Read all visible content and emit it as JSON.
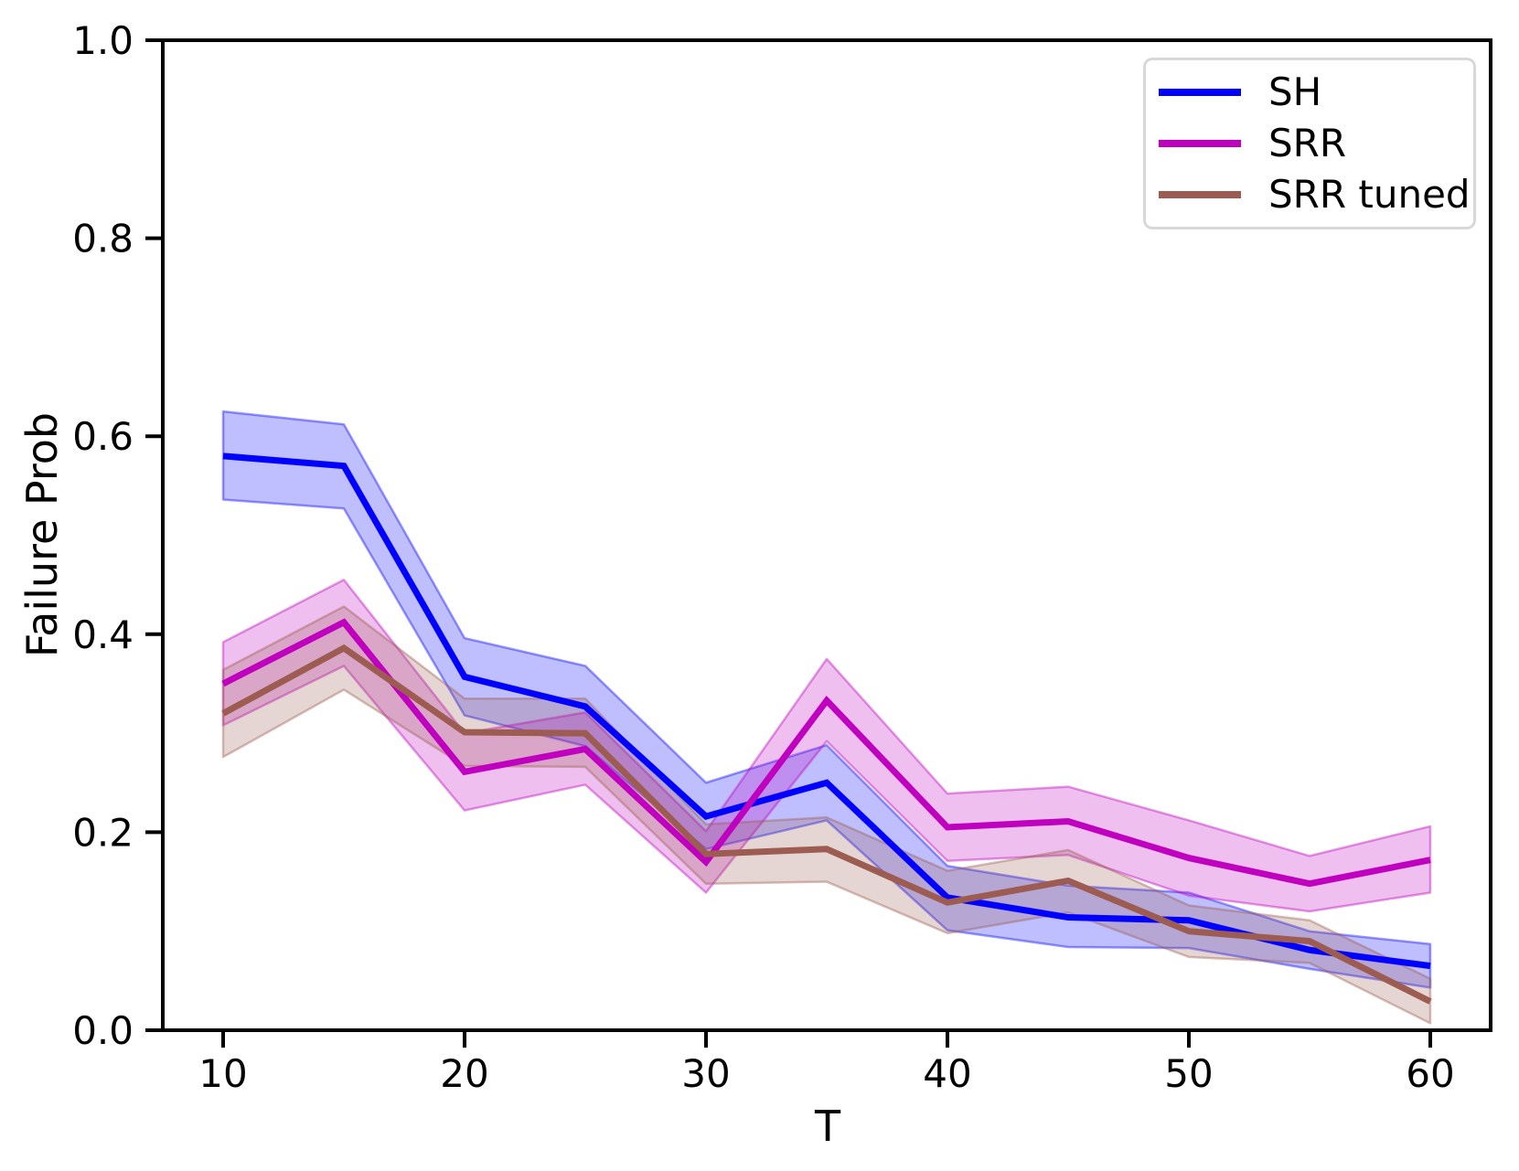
{
  "figure": {
    "background": "#ffffff"
  },
  "chart_data": {
    "type": "line",
    "title": "",
    "xlabel": "T",
    "ylabel": "Failure Prob",
    "x": [
      10,
      15,
      20,
      25,
      30,
      35,
      40,
      45,
      50,
      55,
      60
    ],
    "xlim": [
      7.5,
      62.5
    ],
    "ylim": [
      0.0,
      1.0
    ],
    "x_tick_values": [
      10,
      20,
      30,
      40,
      50,
      60
    ],
    "x_tick_labels": [
      "10",
      "20",
      "30",
      "40",
      "50",
      "60"
    ],
    "y_tick_values": [
      0.0,
      0.2,
      0.4,
      0.6,
      0.8,
      1.0
    ],
    "y_tick_labels": [
      "0.0",
      "0.2",
      "0.4",
      "0.6",
      "0.8",
      "1.0"
    ],
    "grid": false,
    "legend_position": "upper right",
    "band_fill_opacity": 0.25,
    "band_edge_opacity": 0.4,
    "series": [
      {
        "name": "SH",
        "color": "#0000ff",
        "values": [
          0.58,
          0.57,
          0.357,
          0.327,
          0.216,
          0.25,
          0.134,
          0.114,
          0.111,
          0.081,
          0.065
        ],
        "band_upper": [
          0.625,
          0.612,
          0.396,
          0.368,
          0.25,
          0.288,
          0.166,
          0.146,
          0.139,
          0.1,
          0.087
        ],
        "band_lower": [
          0.536,
          0.527,
          0.318,
          0.287,
          0.183,
          0.212,
          0.101,
          0.084,
          0.083,
          0.062,
          0.043
        ]
      },
      {
        "name": "SRR",
        "color": "#bf00bf",
        "values": [
          0.35,
          0.412,
          0.261,
          0.284,
          0.17,
          0.333,
          0.205,
          0.211,
          0.174,
          0.148,
          0.172
        ],
        "band_upper": [
          0.392,
          0.455,
          0.3,
          0.321,
          0.201,
          0.375,
          0.239,
          0.246,
          0.212,
          0.176,
          0.206
        ],
        "band_lower": [
          0.308,
          0.368,
          0.222,
          0.248,
          0.139,
          0.292,
          0.171,
          0.177,
          0.136,
          0.12,
          0.139
        ]
      },
      {
        "name": "SRR tuned",
        "color": "#9c5c51",
        "values": [
          0.32,
          0.386,
          0.301,
          0.3,
          0.178,
          0.183,
          0.129,
          0.151,
          0.1,
          0.09,
          0.029
        ],
        "band_upper": [
          0.364,
          0.428,
          0.335,
          0.335,
          0.208,
          0.215,
          0.161,
          0.182,
          0.126,
          0.111,
          0.052
        ],
        "band_lower": [
          0.276,
          0.344,
          0.267,
          0.266,
          0.148,
          0.15,
          0.098,
          0.119,
          0.074,
          0.068,
          0.007
        ]
      }
    ]
  }
}
